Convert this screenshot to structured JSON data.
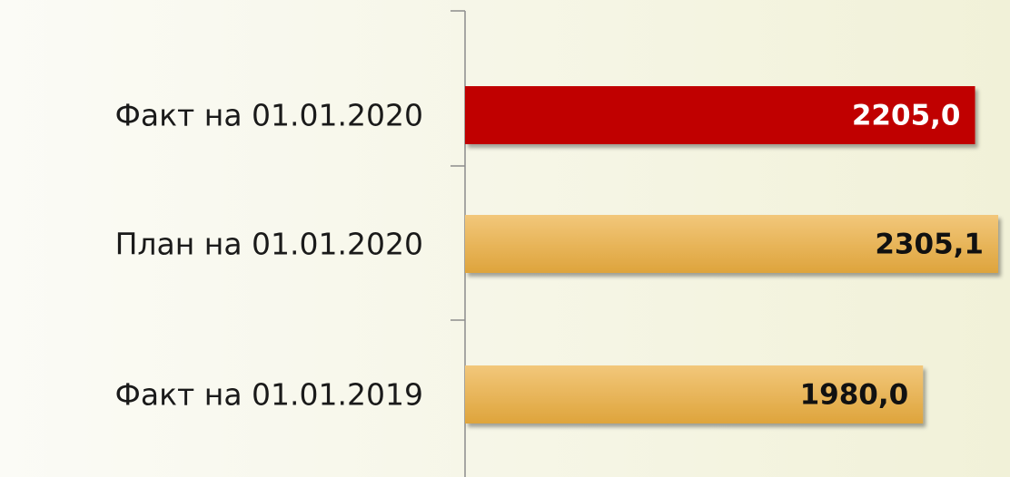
{
  "chart_data": {
    "type": "hbar",
    "categories": [
      "Факт на 01.01.2020",
      "План на 01.01.2020",
      "Факт на 01.01.2019"
    ],
    "values": [
      2205.0,
      2305.1,
      1980.0
    ],
    "value_labels": [
      "2205,0",
      "2305,1",
      "1980,0"
    ],
    "colors": [
      "#c00000",
      "#e8b050",
      "#e8b050"
    ]
  }
}
